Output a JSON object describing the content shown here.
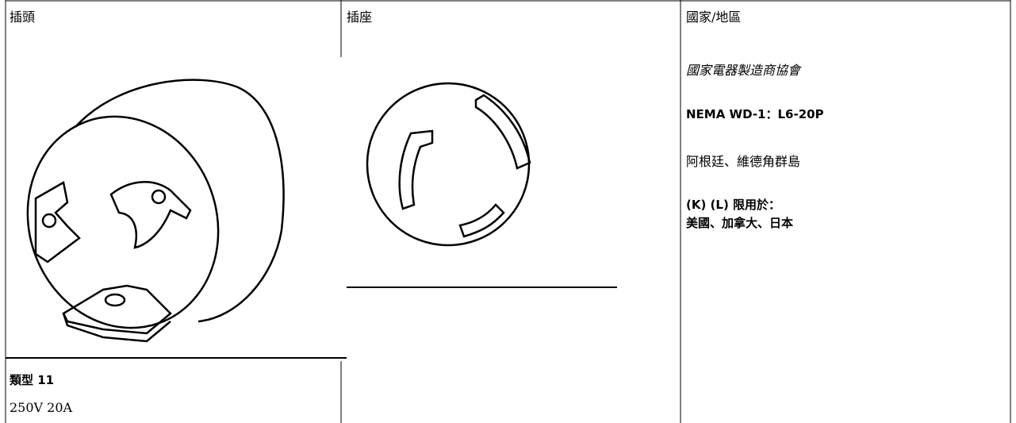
{
  "header": {
    "columns": [
      "插頭",
      "插座",
      "國家/地區"
    ]
  },
  "plug": {
    "type_label": "類型 11",
    "rating": "250V 20A"
  },
  "country": {
    "organization": "國家電器製造商協會",
    "standard": "NEMA WD-1：L6-20P",
    "countries": "阿根廷、維德角群島",
    "note": [
      "(K) (L) 限用於：",
      "美國、加拿大、日本"
    ]
  }
}
